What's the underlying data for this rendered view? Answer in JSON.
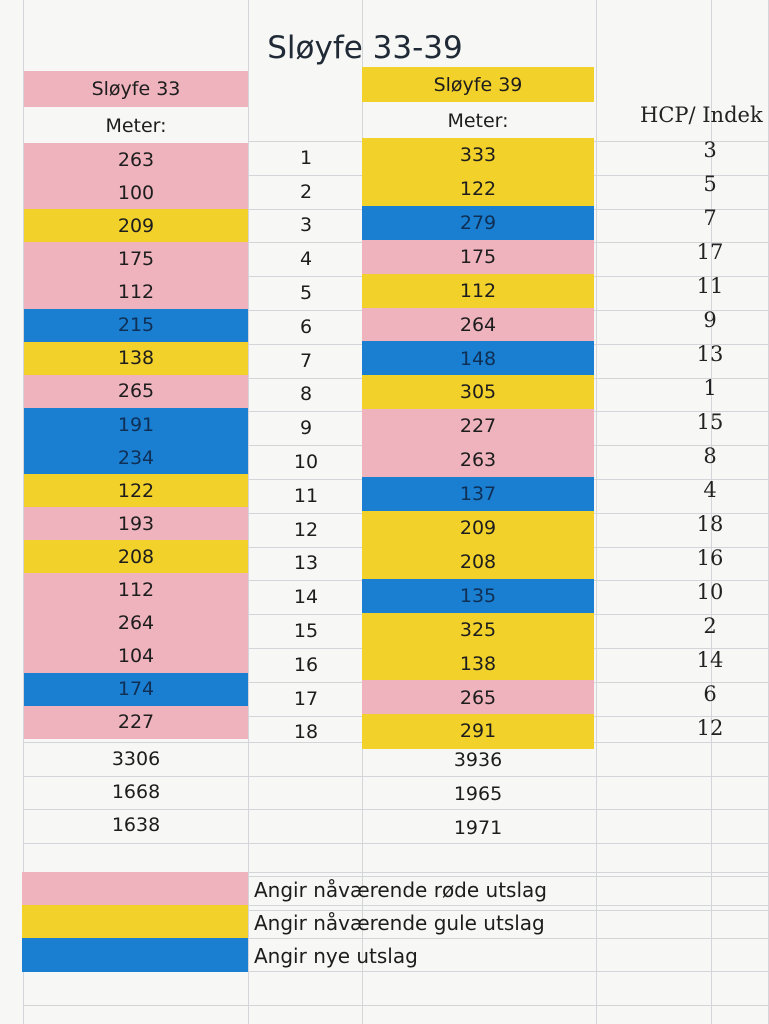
{
  "title": "Sløyfe 33-39",
  "left": {
    "header": "Sløyfe 33",
    "subheader": "Meter:"
  },
  "right": {
    "header": "Sløyfe 39",
    "subheader": "Meter:"
  },
  "hcp_header": "HCP/ Indek",
  "colors": {
    "pink": "#eeb3bd",
    "yellow": "#f2d12b",
    "blue": "#1a7fd1"
  },
  "rows": [
    {
      "hole": "1",
      "left": "263",
      "left_color": "pink",
      "right": "333",
      "right_color": "yellow",
      "hcp": "3"
    },
    {
      "hole": "2",
      "left": "100",
      "left_color": "pink",
      "right": "122",
      "right_color": "yellow",
      "hcp": "5"
    },
    {
      "hole": "3",
      "left": "209",
      "left_color": "yellow",
      "right": "279",
      "right_color": "blue",
      "hcp": "7"
    },
    {
      "hole": "4",
      "left": "175",
      "left_color": "pink",
      "right": "175",
      "right_color": "pink",
      "hcp": "17"
    },
    {
      "hole": "5",
      "left": "112",
      "left_color": "pink",
      "right": "112",
      "right_color": "yellow",
      "hcp": "11"
    },
    {
      "hole": "6",
      "left": "215",
      "left_color": "blue",
      "right": "264",
      "right_color": "pink",
      "hcp": "9"
    },
    {
      "hole": "7",
      "left": "138",
      "left_color": "yellow",
      "right": "148",
      "right_color": "blue",
      "hcp": "13"
    },
    {
      "hole": "8",
      "left": "265",
      "left_color": "pink",
      "right": "305",
      "right_color": "yellow",
      "hcp": "1"
    },
    {
      "hole": "9",
      "left": "191",
      "left_color": "blue",
      "right": "227",
      "right_color": "pink",
      "hcp": "15"
    },
    {
      "hole": "10",
      "left": "234",
      "left_color": "blue",
      "right": "263",
      "right_color": "pink",
      "hcp": "8"
    },
    {
      "hole": "11",
      "left": "122",
      "left_color": "yellow",
      "right": "137",
      "right_color": "blue",
      "hcp": "4"
    },
    {
      "hole": "12",
      "left": "193",
      "left_color": "pink",
      "right": "209",
      "right_color": "yellow",
      "hcp": "18"
    },
    {
      "hole": "13",
      "left": "208",
      "left_color": "yellow",
      "right": "208",
      "right_color": "yellow",
      "hcp": "16"
    },
    {
      "hole": "14",
      "left": "112",
      "left_color": "pink",
      "right": "135",
      "right_color": "blue",
      "hcp": "10"
    },
    {
      "hole": "15",
      "left": "264",
      "left_color": "pink",
      "right": "325",
      "right_color": "yellow",
      "hcp": "2"
    },
    {
      "hole": "16",
      "left": "104",
      "left_color": "pink",
      "right": "138",
      "right_color": "yellow",
      "hcp": "14"
    },
    {
      "hole": "17",
      "left": "174",
      "left_color": "blue",
      "right": "265",
      "right_color": "pink",
      "hcp": "6"
    },
    {
      "hole": "18",
      "left": "227",
      "left_color": "pink",
      "right": "291",
      "right_color": "yellow",
      "hcp": "12"
    }
  ],
  "totals": {
    "left": [
      "3306",
      "1668",
      "1638"
    ],
    "right": [
      "3936",
      "1965",
      "1971"
    ]
  },
  "legend": [
    {
      "color": "pink",
      "text": "Angir nåværende røde utslag"
    },
    {
      "color": "yellow",
      "text": "Angir nåværende gule utslag"
    },
    {
      "color": "blue",
      "text": "Angir nye utslag"
    }
  ]
}
